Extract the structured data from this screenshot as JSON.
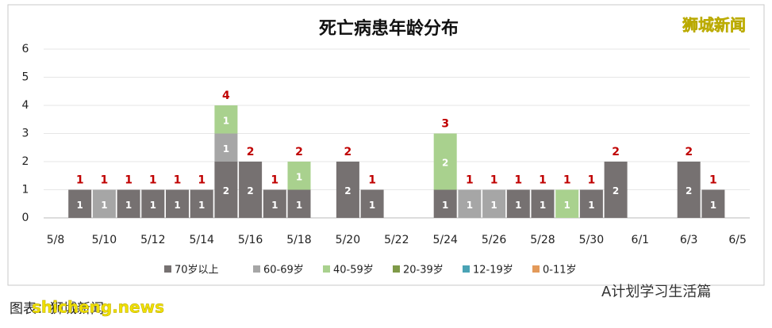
{
  "chart_data": {
    "type": "stacked-bar",
    "title": "死亡病患年龄分布",
    "categories": [
      "5/8",
      null,
      "5/10",
      null,
      "5/12",
      null,
      "5/14",
      null,
      "5/16",
      null,
      "5/18",
      null,
      "5/20",
      null,
      "5/22",
      null,
      "5/24",
      null,
      "5/26",
      null,
      "5/28",
      null,
      "5/30",
      null,
      "6/1",
      null,
      "6/3",
      null,
      "6/5"
    ],
    "series": [
      {
        "name": "70岁以上",
        "color": "#767171",
        "values": [
          null,
          1,
          null,
          1,
          1,
          1,
          1,
          2,
          2,
          1,
          1,
          null,
          2,
          1,
          null,
          null,
          1,
          null,
          null,
          1,
          1,
          null,
          1,
          2,
          null,
          null,
          2,
          1,
          null
        ]
      },
      {
        "name": "60-69岁",
        "color": "#a6a6a6",
        "values": [
          null,
          null,
          1,
          null,
          null,
          null,
          null,
          1,
          null,
          null,
          null,
          null,
          null,
          null,
          null,
          null,
          null,
          1,
          1,
          null,
          null,
          null,
          null,
          null,
          null,
          null,
          null,
          null,
          null
        ]
      },
      {
        "name": "40-59岁",
        "color": "#a9d18e",
        "values": [
          null,
          null,
          null,
          null,
          null,
          null,
          null,
          1,
          null,
          null,
          1,
          null,
          null,
          null,
          null,
          null,
          2,
          null,
          null,
          null,
          null,
          1,
          null,
          null,
          null,
          null,
          null,
          null,
          null
        ]
      },
      {
        "name": "20-39岁",
        "color": "#7f9a48",
        "values": [
          null,
          null,
          null,
          null,
          null,
          null,
          null,
          null,
          null,
          null,
          null,
          null,
          null,
          null,
          null,
          null,
          null,
          null,
          null,
          null,
          null,
          null,
          null,
          null,
          null,
          null,
          null,
          null,
          null
        ]
      },
      {
        "name": "12-19岁",
        "color": "#4aa3b5",
        "values": [
          null,
          null,
          null,
          null,
          null,
          null,
          null,
          null,
          null,
          null,
          null,
          null,
          null,
          null,
          null,
          null,
          null,
          null,
          null,
          null,
          null,
          null,
          null,
          null,
          null,
          null,
          null,
          null,
          null
        ]
      },
      {
        "name": "0-11岁",
        "color": "#e39a5a",
        "values": [
          null,
          null,
          null,
          null,
          null,
          null,
          null,
          null,
          null,
          null,
          null,
          null,
          null,
          null,
          null,
          null,
          null,
          null,
          null,
          null,
          null,
          null,
          null,
          null,
          null,
          null,
          null,
          null,
          null
        ]
      }
    ],
    "totals": [
      null,
      1,
      1,
      1,
      1,
      1,
      1,
      4,
      2,
      1,
      2,
      null,
      2,
      1,
      null,
      null,
      3,
      1,
      1,
      1,
      1,
      1,
      1,
      2,
      null,
      null,
      2,
      1,
      null
    ],
    "ylim": [
      0,
      6
    ],
    "yticks": [
      0,
      1,
      2,
      3,
      4,
      5,
      6
    ],
    "grid": true,
    "legend": "bottom"
  },
  "watermark": "狮城新闻",
  "source": "图表：狮城新闻",
  "source_overlay": "shicheng.news",
  "brand": "A计划学习生活篇"
}
